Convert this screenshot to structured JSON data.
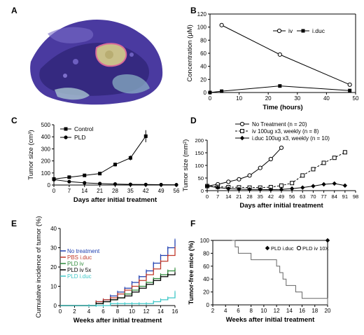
{
  "figure": {
    "panels": [
      {
        "id": "A",
        "label": "A"
      },
      {
        "id": "B",
        "label": "B"
      },
      {
        "id": "C",
        "label": "C"
      },
      {
        "id": "D",
        "label": "D"
      },
      {
        "id": "E",
        "label": "E"
      },
      {
        "id": "F",
        "label": "F"
      }
    ]
  },
  "chart_data": [
    {
      "panel": "B",
      "type": "line",
      "xlabel": "Time (hours)",
      "ylabel": "Concentration (μM)",
      "xlim": [
        0,
        50
      ],
      "ylim": [
        0,
        120
      ],
      "xticks": [
        0,
        10,
        20,
        30,
        40,
        50
      ],
      "yticks": [
        0,
        20,
        40,
        60,
        80,
        100,
        120
      ],
      "legend_position": "top-right",
      "series": [
        {
          "name": "iv",
          "marker": "open-circle",
          "x": [
            4,
            24,
            48
          ],
          "y": [
            103,
            58,
            12
          ],
          "yerr": [
            3,
            2,
            1
          ]
        },
        {
          "name": "i.duc",
          "marker": "filled-square",
          "x": [
            0,
            4,
            24,
            48
          ],
          "y": [
            0,
            2,
            10,
            3
          ],
          "yerr": [
            0,
            0,
            1,
            0
          ]
        }
      ]
    },
    {
      "panel": "C",
      "type": "line",
      "xlabel": "Days after initial treatment",
      "ylabel": "Tumor size (cm³)",
      "xlim": [
        0,
        56
      ],
      "ylim": [
        0,
        500
      ],
      "xticks": [
        0,
        7,
        14,
        21,
        28,
        35,
        42,
        49,
        56
      ],
      "yticks": [
        0,
        100,
        200,
        300,
        400,
        500
      ],
      "legend_position": "top-left",
      "series": [
        {
          "name": "Control",
          "marker": "filled-square",
          "x": [
            0,
            7,
            14,
            21,
            28,
            35,
            42
          ],
          "y": [
            50,
            65,
            80,
            95,
            170,
            225,
            405
          ],
          "yerr": [
            5,
            5,
            8,
            8,
            15,
            20,
            50
          ]
        },
        {
          "name": "PLD",
          "marker": "filled-circle",
          "x": [
            0,
            7,
            14,
            21,
            28,
            35,
            42,
            49,
            56
          ],
          "y": [
            45,
            28,
            18,
            12,
            8,
            5,
            4,
            3,
            2
          ],
          "yerr": [
            5,
            4,
            3,
            2,
            1,
            1,
            1,
            1,
            1
          ]
        }
      ]
    },
    {
      "panel": "D",
      "type": "line",
      "xlabel": "Days after initial treatment",
      "ylabel": "Tumor size (mm²)",
      "xlim": [
        0,
        98
      ],
      "ylim": [
        0,
        200
      ],
      "xticks": [
        0,
        7,
        14,
        21,
        28,
        35,
        42,
        49,
        56,
        63,
        70,
        77,
        84,
        91,
        98
      ],
      "yticks": [
        0,
        50,
        100,
        150,
        200
      ],
      "legend_position": "top-left",
      "series": [
        {
          "name": "No Treatment (n = 20)",
          "marker": "open-circle",
          "line": "solid",
          "x": [
            0,
            7,
            14,
            21,
            28,
            35,
            42,
            49
          ],
          "y": [
            18,
            25,
            35,
            45,
            60,
            90,
            125,
            170
          ]
        },
        {
          "name": "iv 100ug x3, weekly (n = 8)",
          "marker": "open-square",
          "line": "dashed",
          "x": [
            0,
            7,
            14,
            21,
            28,
            35,
            42,
            49,
            56,
            63,
            70,
            77,
            84,
            91
          ],
          "y": [
            18,
            15,
            14,
            13,
            12,
            12,
            14,
            20,
            30,
            60,
            85,
            110,
            130,
            152
          ]
        },
        {
          "name": "i.duc 100ug x3, weekly (n = 10)",
          "marker": "filled-diamond",
          "line": "solid",
          "x": [
            0,
            7,
            14,
            21,
            28,
            35,
            42,
            49,
            56,
            63,
            70,
            77,
            84,
            91
          ],
          "y": [
            18,
            12,
            8,
            6,
            5,
            5,
            4,
            5,
            8,
            12,
            18,
            25,
            28,
            20
          ]
        }
      ]
    },
    {
      "panel": "E",
      "type": "line",
      "xlabel": "Weeks after initial treatment",
      "ylabel": "Cumulative incidence of tumor (%)",
      "xlim": [
        0,
        16
      ],
      "ylim": [
        0,
        40
      ],
      "xticks": [
        0,
        2,
        4,
        6,
        8,
        10,
        12,
        14,
        16
      ],
      "yticks": [
        0,
        10,
        20,
        30,
        40
      ],
      "legend_position": "top-left",
      "series": [
        {
          "name": "No treatment",
          "color": "#1f3fb0",
          "x": [
            0,
            4,
            5,
            6,
            7,
            8,
            9,
            10,
            11,
            12,
            13,
            14,
            15,
            16
          ],
          "y": [
            0,
            0,
            2,
            3,
            5,
            7,
            9,
            12,
            15,
            18,
            22,
            26,
            30,
            34
          ]
        },
        {
          "name": "PBS i.duc",
          "color": "#c0392b",
          "x": [
            0,
            4,
            5,
            6,
            7,
            8,
            9,
            10,
            11,
            12,
            13,
            14,
            15,
            16
          ],
          "y": [
            0,
            0,
            2,
            3,
            4,
            6,
            8,
            10,
            13,
            16,
            19,
            23,
            26,
            30
          ]
        },
        {
          "name": "PLD iv",
          "color": "#2e8b3a",
          "x": [
            0,
            4,
            5,
            6,
            7,
            8,
            9,
            10,
            11,
            12,
            13,
            14,
            15,
            16
          ],
          "y": [
            0,
            0,
            1,
            2,
            3,
            4,
            6,
            8,
            10,
            12,
            14,
            16,
            18,
            19
          ]
        },
        {
          "name": "PLD iv 5x",
          "color": "#000000",
          "x": [
            0,
            4,
            5,
            6,
            7,
            8,
            9,
            10,
            11,
            12,
            13,
            14,
            15,
            16
          ],
          "y": [
            0,
            0,
            1,
            2,
            3,
            4,
            5,
            7,
            9,
            11,
            13,
            15,
            16,
            17
          ]
        },
        {
          "name": "PLD i.duc",
          "color": "#3fc7c7",
          "x": [
            0,
            4,
            5,
            6,
            7,
            8,
            9,
            10,
            11,
            12,
            13,
            14,
            15,
            16
          ],
          "y": [
            0,
            0,
            0,
            0,
            1,
            1,
            1,
            1,
            1,
            1,
            2,
            3,
            4,
            7
          ]
        }
      ]
    },
    {
      "panel": "F",
      "type": "line",
      "xlabel": "Weeks after initial treatment",
      "ylabel": "Tumor-free mice (%)",
      "xlim": [
        2,
        20
      ],
      "ylim": [
        0,
        100
      ],
      "xticks": [
        2,
        4,
        6,
        8,
        10,
        12,
        14,
        16,
        18,
        20
      ],
      "yticks": [
        0,
        20,
        40,
        60,
        80,
        100
      ],
      "legend_position": "top-right",
      "series": [
        {
          "name": "PLD i.duc",
          "marker": "filled-diamond",
          "x": [
            5,
            20
          ],
          "y": [
            100,
            100
          ]
        },
        {
          "name": "PLD iv 10X",
          "marker": "open-circle",
          "x": [
            5,
            5.5,
            6,
            7,
            8,
            9,
            10,
            12,
            12.5,
            13,
            13.5,
            14,
            15,
            16,
            18,
            20
          ],
          "y": [
            100,
            90,
            80,
            80,
            70,
            70,
            70,
            60,
            50,
            40,
            30,
            30,
            20,
            10,
            10,
            0
          ]
        }
      ]
    }
  ]
}
